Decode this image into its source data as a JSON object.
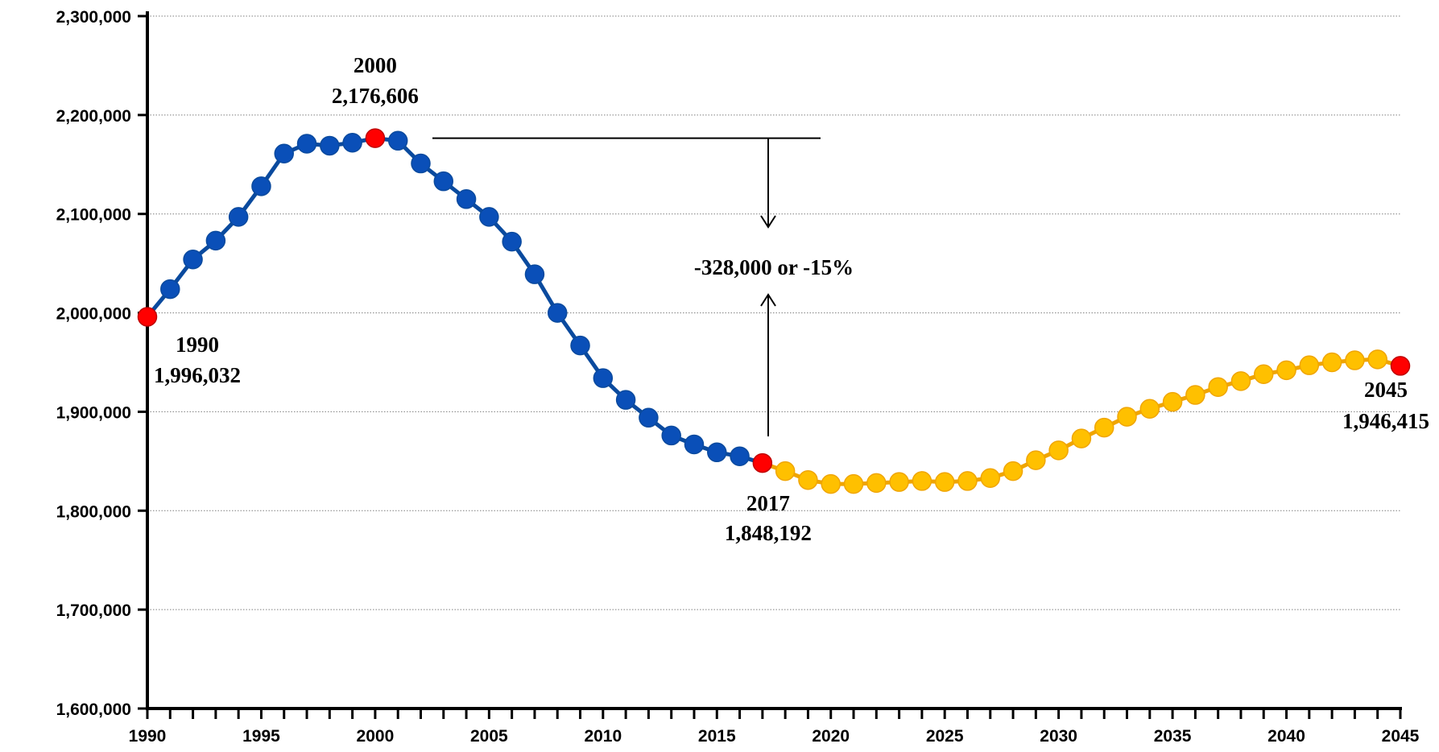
{
  "chart_data": {
    "type": "line",
    "title": "",
    "xlabel": "",
    "ylabel": "",
    "xlim": [
      1990,
      2045
    ],
    "ylim": [
      1600000,
      2300000
    ],
    "grid": true,
    "y_ticks": [
      1600000,
      1700000,
      1800000,
      1900000,
      2000000,
      2100000,
      2200000,
      2300000
    ],
    "y_tick_labels": [
      "1,600,000",
      "1,700,000",
      "1,800,000",
      "1,900,000",
      "2,000,000",
      "2,100,000",
      "2,200,000",
      "2,300,000"
    ],
    "x_ticks": [
      1990,
      1995,
      2000,
      2005,
      2010,
      2015,
      2020,
      2025,
      2030,
      2035,
      2040,
      2045
    ],
    "x_tick_labels": [
      "1990",
      "1995",
      "2000",
      "2005",
      "2010",
      "2015",
      "2020",
      "2025",
      "2030",
      "2035",
      "2040",
      "2045"
    ],
    "series": [
      {
        "color": "#0a4a9e",
        "marker_color": "#0a4fb8",
        "points": [
          [
            1990,
            1996032
          ],
          [
            1991,
            2024000
          ],
          [
            1992,
            2054000
          ],
          [
            1993,
            2073000
          ],
          [
            1994,
            2097000
          ],
          [
            1995,
            2128000
          ],
          [
            1996,
            2161000
          ],
          [
            1997,
            2171000
          ],
          [
            1998,
            2169000
          ],
          [
            1999,
            2172000
          ],
          [
            2000,
            2176606
          ],
          [
            2001,
            2174000
          ],
          [
            2002,
            2151000
          ],
          [
            2003,
            2133000
          ],
          [
            2004,
            2115000
          ],
          [
            2005,
            2097000
          ],
          [
            2006,
            2072000
          ],
          [
            2007,
            2039000
          ],
          [
            2008,
            2000000
          ],
          [
            2009,
            1967000
          ],
          [
            2010,
            1934000
          ],
          [
            2011,
            1912000
          ],
          [
            2012,
            1894000
          ],
          [
            2013,
            1876000
          ],
          [
            2014,
            1867000
          ],
          [
            2015,
            1859000
          ],
          [
            2016,
            1855000
          ],
          [
            2017,
            1848192
          ]
        ]
      },
      {
        "color": "#f0a500",
        "marker_color": "#ffc000",
        "points": [
          [
            2017,
            1848192
          ],
          [
            2018,
            1840000
          ],
          [
            2019,
            1831000
          ],
          [
            2020,
            1827000
          ],
          [
            2021,
            1827000
          ],
          [
            2022,
            1828000
          ],
          [
            2023,
            1829000
          ],
          [
            2024,
            1830000
          ],
          [
            2025,
            1829000
          ],
          [
            2026,
            1830000
          ],
          [
            2027,
            1833000
          ],
          [
            2028,
            1840000
          ],
          [
            2029,
            1851000
          ],
          [
            2030,
            1861000
          ],
          [
            2031,
            1873000
          ],
          [
            2032,
            1884000
          ],
          [
            2033,
            1895000
          ],
          [
            2034,
            1903000
          ],
          [
            2035,
            1910000
          ],
          [
            2036,
            1917000
          ],
          [
            2037,
            1925000
          ],
          [
            2038,
            1931000
          ],
          [
            2039,
            1938000
          ],
          [
            2040,
            1942000
          ],
          [
            2041,
            1947000
          ],
          [
            2042,
            1950000
          ],
          [
            2043,
            1952000
          ],
          [
            2044,
            1953000
          ],
          [
            2045,
            1946415
          ]
        ]
      }
    ],
    "highlight_color": "#ff0000",
    "highlights": [
      {
        "x": 1990,
        "y": 1996032,
        "year_label": "1990",
        "value_label": "1,996,032"
      },
      {
        "x": 2000,
        "y": 2176606,
        "year_label": "2000",
        "value_label": "2,176,606"
      },
      {
        "x": 2017,
        "y": 1848192,
        "year_label": "2017",
        "value_label": "1,848,192"
      },
      {
        "x": 2045,
        "y": 1946415,
        "year_label": "2045",
        "value_label": "1,946,415"
      }
    ],
    "annotation": {
      "text": "-328,000 or -15%",
      "from_year": 2000,
      "to_year": 2017
    }
  }
}
